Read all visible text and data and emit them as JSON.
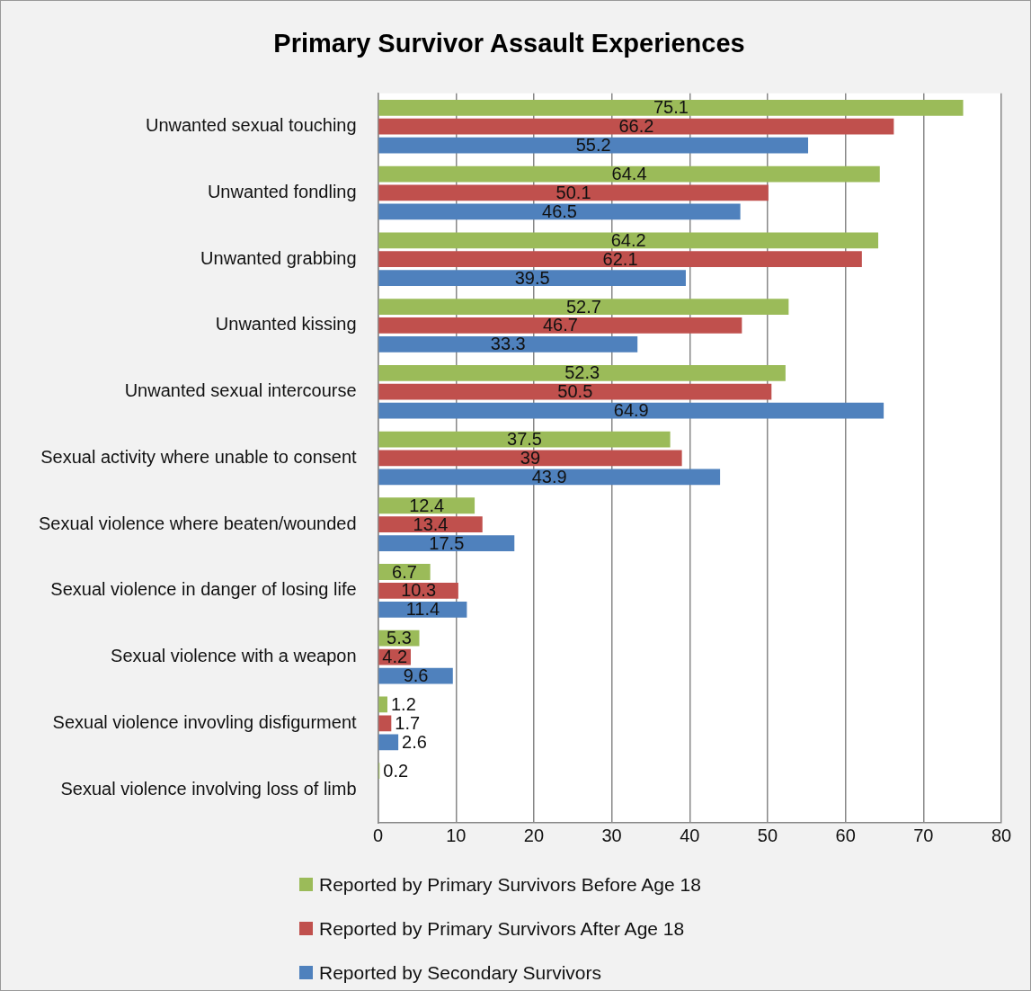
{
  "chart_data": {
    "type": "bar",
    "orientation": "horizontal",
    "title": "Primary Survivor Assault Experiences",
    "categories": [
      "Unwanted sexual touching",
      "Unwanted fondling",
      "Unwanted grabbing",
      "Unwanted kissing",
      "Unwanted sexual intercourse",
      "Sexual activity where unable to consent",
      "Sexual violence where beaten/wounded",
      "Sexual violence in danger of losing life",
      "Sexual violence with a weapon",
      "Sexual violence invovling disfigurment",
      "Sexual violence involving loss of limb"
    ],
    "series": [
      {
        "name": "Reported by Primary Survivors Before Age 18",
        "color": "#9bbb59",
        "values": [
          75.1,
          64.4,
          64.2,
          52.7,
          52.3,
          37.5,
          12.4,
          6.7,
          5.3,
          1.2,
          0.2
        ]
      },
      {
        "name": "Reported by Primary Survivors After Age 18",
        "color": "#c0504d",
        "values": [
          66.2,
          50.1,
          62.1,
          46.7,
          50.5,
          39,
          13.4,
          10.3,
          4.2,
          1.7,
          null
        ]
      },
      {
        "name": "Reported by Secondary Survivors",
        "color": "#4f81bd",
        "values": [
          55.2,
          46.5,
          39.5,
          33.3,
          64.9,
          43.9,
          17.5,
          11.4,
          9.6,
          2.6,
          null
        ]
      }
    ],
    "xlim": [
      0,
      80
    ],
    "xticks": [
      0,
      10,
      20,
      30,
      40,
      50,
      60,
      70,
      80
    ],
    "grid": "x",
    "legend": "bottom",
    "data_labels": true
  }
}
